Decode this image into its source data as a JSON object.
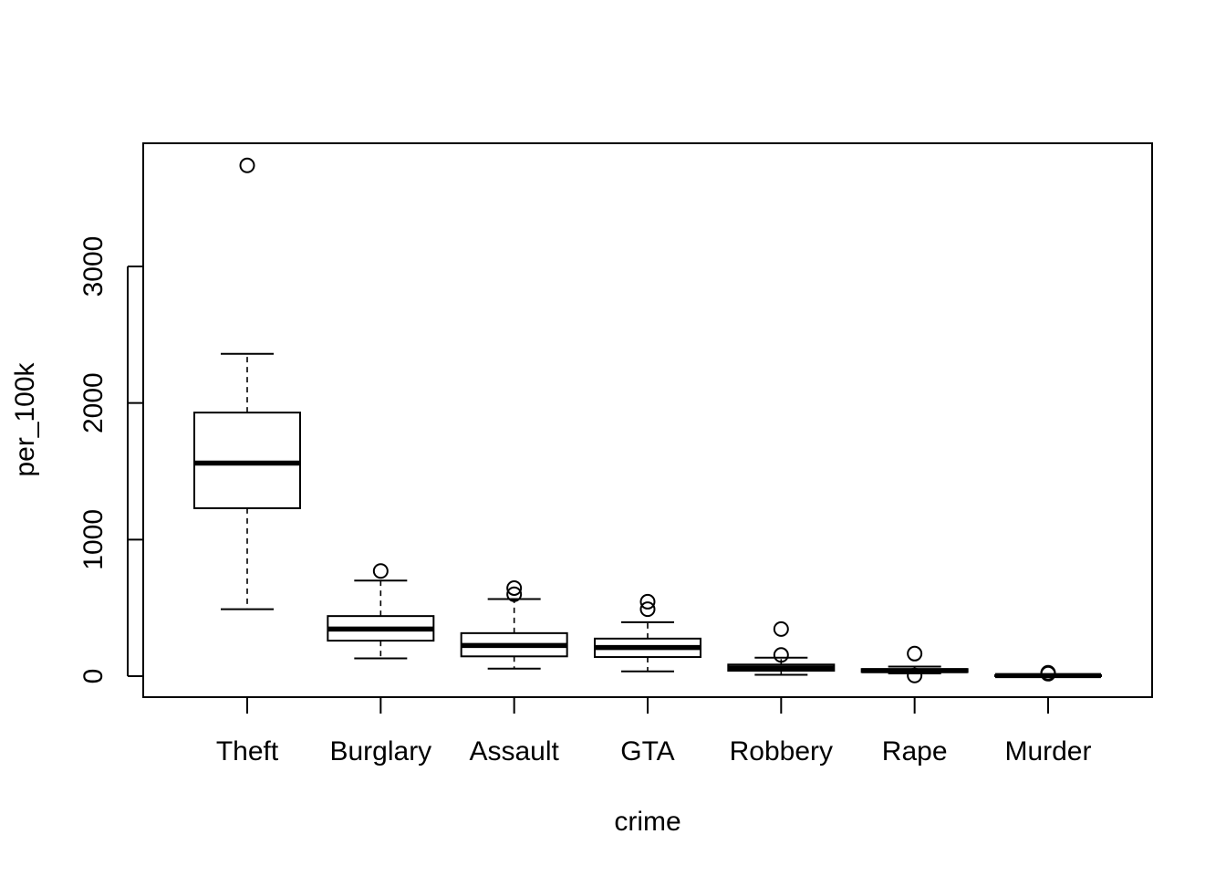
{
  "chart_data": {
    "type": "boxplot",
    "title": "",
    "xlabel": "crime",
    "ylabel": "per_100k",
    "ylim": [
      -150,
      3900
    ],
    "yticks": [
      0,
      1000,
      2000,
      3000
    ],
    "ytick_labels": [
      "0",
      "1000",
      "2000",
      "3000"
    ],
    "grid": false,
    "legend": "none",
    "categories": [
      "Theft",
      "Burglary",
      "Assault",
      "GTA",
      "Robbery",
      "Rape",
      "Murder"
    ],
    "boxes": [
      {
        "name": "Theft",
        "whisker_low": 490,
        "q1": 1230,
        "median": 1560,
        "q3": 1930,
        "whisker_high": 2360,
        "outliers": [
          3740
        ]
      },
      {
        "name": "Burglary",
        "whisker_low": 130,
        "q1": 260,
        "median": 345,
        "q3": 440,
        "whisker_high": 700,
        "outliers": [
          770
        ]
      },
      {
        "name": "Assault",
        "whisker_low": 55,
        "q1": 145,
        "median": 225,
        "q3": 315,
        "whisker_high": 565,
        "outliers": [
          600,
          645
        ]
      },
      {
        "name": "GTA",
        "whisker_low": 35,
        "q1": 140,
        "median": 210,
        "q3": 275,
        "whisker_high": 395,
        "outliers": [
          490,
          545
        ]
      },
      {
        "name": "Robbery",
        "whisker_low": 10,
        "q1": 40,
        "median": 60,
        "q3": 85,
        "whisker_high": 135,
        "outliers": [
          155,
          345
        ]
      },
      {
        "name": "Rape",
        "whisker_low": 20,
        "q1": 30,
        "median": 40,
        "q3": 52,
        "whisker_high": 70,
        "outliers": [
          5,
          165
        ]
      },
      {
        "name": "Murder",
        "whisker_low": 0,
        "q1": 0,
        "median": 4,
        "q3": 7,
        "whisker_high": 12,
        "outliers": [
          18,
          25
        ]
      }
    ]
  }
}
